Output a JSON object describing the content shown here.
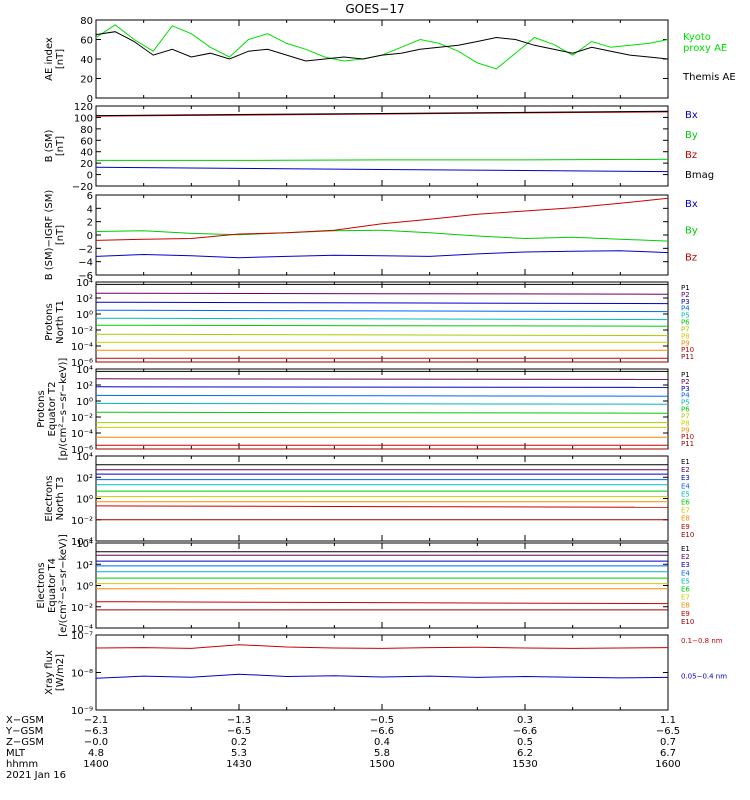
{
  "title": "GOES−17",
  "chart_data": [
    {
      "type": "line",
      "ylabel": [
        "AE index",
        "[nT]"
      ],
      "ylim": [
        0,
        80
      ],
      "yticks": [
        "0",
        "20",
        "40",
        "60",
        "80"
      ],
      "series": [
        {
          "name": "Kyoto proxy AE",
          "label_lines": [
            "Kyoto",
            "proxy AE"
          ],
          "color": "#00e000",
          "x": [
            0,
            4,
            8,
            12,
            16,
            20,
            24,
            28,
            32,
            36,
            40,
            44,
            48,
            52,
            56,
            60,
            64,
            68,
            72,
            76,
            80,
            84,
            88,
            92,
            96,
            100,
            104,
            108,
            112,
            116,
            120
          ],
          "values": [
            62,
            75,
            60,
            48,
            74,
            66,
            52,
            42,
            60,
            66,
            56,
            50,
            42,
            38,
            40,
            44,
            52,
            60,
            56,
            48,
            36,
            30,
            46,
            62,
            55,
            44,
            58,
            52,
            54,
            56,
            60
          ]
        },
        {
          "name": "Themis AE",
          "label_lines": [
            "Themis AE"
          ],
          "color": "#000000",
          "x": [
            0,
            4,
            8,
            12,
            16,
            20,
            24,
            28,
            32,
            36,
            40,
            44,
            48,
            52,
            56,
            60,
            64,
            68,
            72,
            76,
            80,
            84,
            88,
            92,
            96,
            100,
            104,
            108,
            112,
            116,
            120
          ],
          "values": [
            65,
            68,
            58,
            44,
            50,
            42,
            46,
            40,
            48,
            50,
            44,
            38,
            40,
            42,
            40,
            44,
            46,
            50,
            52,
            54,
            58,
            62,
            60,
            54,
            50,
            46,
            52,
            48,
            44,
            42,
            40
          ]
        }
      ]
    },
    {
      "type": "line",
      "ylabel": [
        "B (SM)",
        "[nT]"
      ],
      "ylim": [
        -30,
        120
      ],
      "yticks": [
        "−20",
        "0",
        "20",
        "40",
        "60",
        "80",
        "100",
        "120"
      ],
      "series": [
        {
          "name": "Bx",
          "color": "#0000cc",
          "x": [
            0,
            30,
            60,
            90,
            120
          ],
          "values": [
            5,
            3,
            1,
            -1,
            -3
          ]
        },
        {
          "name": "By",
          "color": "#00cc00",
          "x": [
            0,
            30,
            60,
            90,
            120
          ],
          "values": [
            18,
            18,
            19,
            19,
            20
          ]
        },
        {
          "name": "Bz",
          "color": "#cc0000",
          "x": [
            0,
            30,
            60,
            90,
            120
          ],
          "values": [
            101,
            103,
            105,
            107,
            109
          ]
        },
        {
          "name": "Bmag",
          "color": "#000000",
          "x": [
            0,
            30,
            60,
            90,
            120
          ],
          "values": [
            102,
            104,
            106,
            108,
            110
          ]
        }
      ]
    },
    {
      "type": "line",
      "ylabel": [
        "B (SM)−IGRF (SM)",
        "[nT]"
      ],
      "ylim": [
        -6.5,
        6
      ],
      "yticks": [
        "−6",
        "−4",
        "−2",
        "0",
        "2",
        "4",
        "6"
      ],
      "series": [
        {
          "name": "Bx",
          "color": "#0000cc",
          "x": [
            0,
            10,
            20,
            30,
            40,
            50,
            60,
            70,
            80,
            90,
            100,
            110,
            120
          ],
          "values": [
            -3.6,
            -3.3,
            -3.5,
            -3.8,
            -3.6,
            -3.4,
            -3.5,
            -3.6,
            -3.2,
            -2.9,
            -2.8,
            -2.7,
            -3.0
          ]
        },
        {
          "name": "By",
          "color": "#00cc00",
          "x": [
            0,
            10,
            20,
            30,
            40,
            50,
            60,
            70,
            80,
            90,
            100,
            110,
            120
          ],
          "values": [
            0.3,
            0.4,
            0.0,
            -0.2,
            0.1,
            0.4,
            0.5,
            0.1,
            -0.4,
            -0.8,
            -0.6,
            -0.9,
            -1.2
          ]
        },
        {
          "name": "Bz",
          "color": "#cc0000",
          "x": [
            0,
            10,
            20,
            30,
            40,
            50,
            60,
            70,
            80,
            90,
            100,
            110,
            120
          ],
          "values": [
            -1.1,
            -0.9,
            -0.8,
            -0.1,
            0.1,
            0.5,
            1.5,
            2.2,
            3.0,
            3.5,
            4.0,
            4.7,
            5.5
          ]
        }
      ]
    },
    {
      "type": "line",
      "log": true,
      "ylabel": [
        "Protons",
        "North T1"
      ],
      "ylim": [
        1e-06,
        10000.0
      ],
      "yticks": [
        "10⁻⁶",
        "10⁻⁴",
        "10⁻²",
        "10⁰",
        "10²",
        "10⁴"
      ],
      "series": [
        {
          "name": "P1",
          "color": "#000000",
          "values": [
            5000.0,
            5000.0
          ]
        },
        {
          "name": "P2",
          "color": "#660066",
          "values": [
            400.0,
            300.0
          ]
        },
        {
          "name": "P3",
          "color": "#0000cc",
          "values": [
            30,
            20
          ]
        },
        {
          "name": "P4",
          "color": "#0066ff",
          "values": [
            3,
            2
          ]
        },
        {
          "name": "P5",
          "color": "#00bbbb",
          "values": [
            0.3,
            0.2
          ]
        },
        {
          "name": "P6",
          "color": "#00cc00",
          "values": [
            0.04,
            0.03
          ]
        },
        {
          "name": "P7",
          "color": "#aacc00",
          "values": [
            0.003,
            0.002
          ]
        },
        {
          "name": "P8",
          "color": "#cccc00",
          "values": [
            0.0003,
            0.0003
          ]
        },
        {
          "name": "P9",
          "color": "#ff8800",
          "values": [
            3e-05,
            3e-05
          ]
        },
        {
          "name": "P10",
          "color": "#cc0000",
          "values": [
            3e-06,
            3e-06
          ]
        },
        {
          "name": "P11",
          "color": "#990000",
          "values": [
            1e-06,
            1e-06
          ]
        }
      ]
    },
    {
      "type": "line",
      "log": true,
      "ylabel": [
        "Protons",
        "Equator T2",
        "[p/(cm²−s−sr−keV)]"
      ],
      "ylim": [
        1e-06,
        10000.0
      ],
      "yticks": [
        "10⁻⁶",
        "10⁻⁴",
        "10⁻²",
        "10⁰",
        "10²",
        "10⁴"
      ],
      "series": [
        {
          "name": "P1",
          "color": "#000000",
          "values": [
            5000.0,
            5000.0
          ]
        },
        {
          "name": "P2",
          "color": "#660066",
          "values": [
            600.0,
            500.0
          ]
        },
        {
          "name": "P3",
          "color": "#0000cc",
          "values": [
            60,
            50
          ]
        },
        {
          "name": "P4",
          "color": "#0066ff",
          "values": [
            5,
            4
          ]
        },
        {
          "name": "P5",
          "color": "#00bbbb",
          "values": [
            0.5,
            0.4
          ]
        },
        {
          "name": "P6",
          "color": "#00cc00",
          "values": [
            0.04,
            0.03
          ]
        },
        {
          "name": "P7",
          "color": "#aacc00",
          "values": [
            0.002,
            0.002
          ]
        },
        {
          "name": "P8",
          "color": "#cccc00",
          "values": [
            0.0005,
            0.0005
          ]
        },
        {
          "name": "P9",
          "color": "#ff8800",
          "values": [
            3e-05,
            3e-05
          ]
        },
        {
          "name": "P10",
          "color": "#cc0000",
          "values": [
            3e-06,
            3e-06
          ]
        },
        {
          "name": "P11",
          "color": "#990000",
          "values": [
            1e-06,
            1e-06
          ]
        }
      ]
    },
    {
      "type": "line",
      "log": true,
      "ylabel": [
        "Electrons",
        "North T3"
      ],
      "ylim": [
        0.0001,
        10000.0
      ],
      "yticks": [
        "10⁻⁴",
        "10⁻²",
        "10⁰",
        "10²",
        "10⁴"
      ],
      "series": [
        {
          "name": "E1",
          "color": "#000000",
          "values": [
            1500.0,
            1500.0
          ]
        },
        {
          "name": "E2",
          "color": "#660066",
          "values": [
            500.0,
            500.0
          ]
        },
        {
          "name": "E3",
          "color": "#0000cc",
          "values": [
            200.0,
            200.0
          ]
        },
        {
          "name": "E4",
          "color": "#0066ff",
          "values": [
            60,
            60
          ]
        },
        {
          "name": "E5",
          "color": "#00bbbb",
          "values": [
            20,
            20
          ]
        },
        {
          "name": "E6",
          "color": "#00cc00",
          "values": [
            5,
            5
          ]
        },
        {
          "name": "E7",
          "color": "#cccc00",
          "values": [
            1.5,
            1.5
          ]
        },
        {
          "name": "E8",
          "color": "#ff8800",
          "values": [
            0.5,
            0.5
          ]
        },
        {
          "name": "E9",
          "color": "#cc0000",
          "values": [
            0.2,
            0.15
          ]
        },
        {
          "name": "E10",
          "color": "#990000",
          "values": [
            0.01,
            0.01
          ]
        }
      ]
    },
    {
      "type": "line",
      "log": true,
      "ylabel": [
        "Electrons",
        "Equator T4",
        "[e/(cm²−s−sr−keV)]"
      ],
      "ylim": [
        0.0001,
        10000.0
      ],
      "yticks": [
        "10⁻⁴",
        "10⁻²",
        "10⁰",
        "10²",
        "10⁴"
      ],
      "series": [
        {
          "name": "E1",
          "color": "#000000",
          "values": [
            1500.0,
            1500.0
          ]
        },
        {
          "name": "E2",
          "color": "#660066",
          "values": [
            700.0,
            700.0
          ]
        },
        {
          "name": "E3",
          "color": "#0000cc",
          "values": [
            200.0,
            200.0
          ]
        },
        {
          "name": "E4",
          "color": "#0066ff",
          "values": [
            70,
            70
          ]
        },
        {
          "name": "E5",
          "color": "#00bbbb",
          "values": [
            20,
            20
          ]
        },
        {
          "name": "E6",
          "color": "#00cc00",
          "values": [
            5,
            5
          ]
        },
        {
          "name": "E7",
          "color": "#cccc00",
          "values": [
            1.5,
            1.5
          ]
        },
        {
          "name": "E8",
          "color": "#ff8800",
          "values": [
            0.5,
            0.5
          ]
        },
        {
          "name": "E9",
          "color": "#cc0000",
          "values": [
            0.03,
            0.02
          ]
        },
        {
          "name": "E10",
          "color": "#990000",
          "values": [
            0.005,
            0.005
          ]
        }
      ]
    },
    {
      "type": "line",
      "log": true,
      "ylabel": [
        "Xray flux",
        "[W/m2]"
      ],
      "ylim": [
        1e-09,
        1e-07
      ],
      "yticks": [
        "10⁻⁹",
        "10⁻⁸",
        "10⁻⁷"
      ],
      "series": [
        {
          "name": "0.1−0.8 nm",
          "color": "#cc0000",
          "x": [
            0,
            10,
            20,
            30,
            40,
            50,
            60,
            70,
            80,
            90,
            100,
            110,
            120
          ],
          "values": [
            4.5e-08,
            4.6e-08,
            4.4e-08,
            5.5e-08,
            4.8e-08,
            4.5e-08,
            4.4e-08,
            4.6e-08,
            4.7e-08,
            4.5e-08,
            4.4e-08,
            4.5e-08,
            4.6e-08
          ]
        },
        {
          "name": "0.05−0.4 nm",
          "color": "#0000cc",
          "x": [
            0,
            10,
            20,
            30,
            40,
            50,
            60,
            70,
            80,
            90,
            100,
            110,
            120
          ],
          "values": [
            7e-09,
            8e-09,
            7.5e-09,
            9e-09,
            7.8e-09,
            8.2e-09,
            7.6e-09,
            8e-09,
            7.4e-09,
            7.8e-09,
            7.5e-09,
            7.2e-09,
            7.4e-09
          ]
        }
      ]
    }
  ],
  "x_axis": {
    "range": [
      1400,
      1600
    ],
    "ticks": [
      {
        "xgsm": "−2.1",
        "ygsm": "−6.3",
        "zgsm": "−0.0",
        "mlt": "4.8",
        "hhmm": "1400"
      },
      {
        "xgsm": "−1.3",
        "ygsm": "−6.5",
        "zgsm": "0.2",
        "mlt": "5.3",
        "hhmm": "1430"
      },
      {
        "xgsm": "−0.5",
        "ygsm": "−6.6",
        "zgsm": "0.4",
        "mlt": "5.8",
        "hhmm": "1500"
      },
      {
        "xgsm": "0.3",
        "ygsm": "−6.6",
        "zgsm": "0.5",
        "mlt": "6.2",
        "hhmm": "1530"
      },
      {
        "xgsm": "1.1",
        "ygsm": "−6.5",
        "zgsm": "0.7",
        "mlt": "6.7",
        "hhmm": "1600"
      }
    ],
    "row_labels": [
      "X−GSM",
      "Y−GSM",
      "Z−GSM",
      "MLT",
      "hhmm"
    ],
    "date": "2021 Jan 16"
  }
}
